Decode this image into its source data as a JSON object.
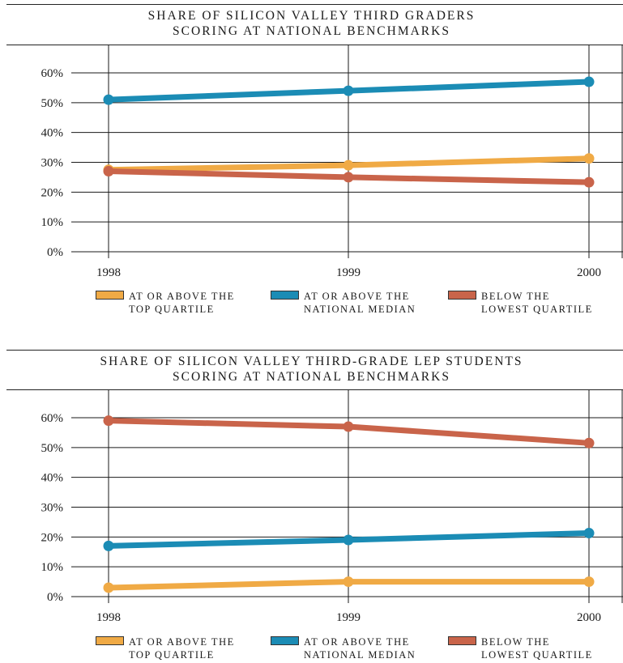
{
  "colors": {
    "top_quartile": "#F0AA45",
    "national_median": "#1B8CB5",
    "lowest_quartile": "#C9644A",
    "grid": "#1a1a1a"
  },
  "charts": [
    {
      "title_line1": "SHARE OF SILICON VALLEY THIRD GRADERS",
      "title_line2": "SCORING AT NATIONAL BENCHMARKS"
    },
    {
      "title_line1": "SHARE OF SILICON VALLEY THIRD-GRADE LEP STUDENTS",
      "title_line2": "SCORING AT NATIONAL BENCHMARKS"
    }
  ],
  "legend": [
    {
      "line1": "AT OR ABOVE THE",
      "line2": "TOP QUARTILE"
    },
    {
      "line1": "AT OR ABOVE THE",
      "line2": "NATIONAL MEDIAN"
    },
    {
      "line1": "BELOW THE",
      "line2": "LOWEST QUARTILE"
    }
  ],
  "chart_data": [
    {
      "type": "line",
      "title": "SHARE OF SILICON VALLEY THIRD GRADERS SCORING AT NATIONAL BENCHMARKS",
      "x": [
        "1998",
        "1999",
        "2000"
      ],
      "ylim": [
        0,
        60
      ],
      "yticks": [
        "0%",
        "10%",
        "20%",
        "30%",
        "40%",
        "50%",
        "60%"
      ],
      "grid": true,
      "legend_position": "bottom",
      "series": [
        {
          "name": "AT OR ABOVE THE TOP QUARTILE",
          "color_key": "top_quartile",
          "values": [
            27.5,
            29,
            31.3
          ]
        },
        {
          "name": "AT OR ABOVE THE NATIONAL MEDIAN",
          "color_key": "national_median",
          "values": [
            51,
            54,
            57
          ]
        },
        {
          "name": "BELOW THE LOWEST QUARTILE",
          "color_key": "lowest_quartile",
          "values": [
            27,
            25,
            23.3
          ]
        }
      ]
    },
    {
      "type": "line",
      "title": "SHARE OF SILICON VALLEY THIRD-GRADE LEP STUDENTS SCORING AT NATIONAL BENCHMARKS",
      "x": [
        "1998",
        "1999",
        "2000"
      ],
      "ylim": [
        0,
        60
      ],
      "yticks": [
        "0%",
        "10%",
        "20%",
        "30%",
        "40%",
        "50%",
        "60%"
      ],
      "grid": true,
      "legend_position": "bottom",
      "series": [
        {
          "name": "AT OR ABOVE THE TOP QUARTILE",
          "color_key": "top_quartile",
          "values": [
            3,
            5,
            5
          ]
        },
        {
          "name": "AT OR ABOVE THE NATIONAL MEDIAN",
          "color_key": "national_median",
          "values": [
            17,
            19,
            21.3
          ]
        },
        {
          "name": "BELOW THE LOWEST QUARTILE",
          "color_key": "lowest_quartile",
          "values": [
            59,
            57,
            51.5
          ]
        }
      ]
    }
  ]
}
